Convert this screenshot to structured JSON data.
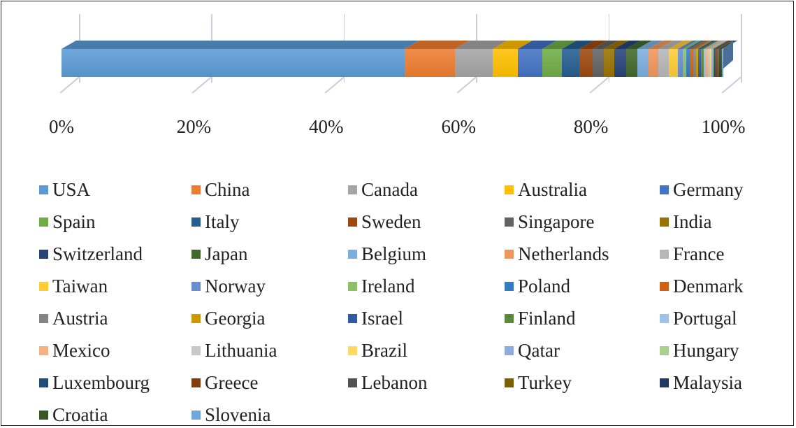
{
  "chart_data": {
    "type": "bar",
    "orientation": "horizontal",
    "stacked": "100%",
    "style": "3d",
    "title": "",
    "xlabel": "",
    "ylabel": "",
    "xlim": [
      0,
      100
    ],
    "x_ticks": [
      "0%",
      "20%",
      "40%",
      "60%",
      "80%",
      "100%"
    ],
    "grid": true,
    "legend_position": "bottom",
    "categories": [
      ""
    ],
    "series": [
      {
        "name": "USA",
        "color": "#5b9bd5",
        "values": [
          51.4
        ]
      },
      {
        "name": "China",
        "color": "#ed7d31",
        "values": [
          7.6
        ]
      },
      {
        "name": "Canada",
        "color": "#a5a5a5",
        "values": [
          5.6
        ]
      },
      {
        "name": "Australia",
        "color": "#ffc000",
        "values": [
          3.8
        ]
      },
      {
        "name": "Germany",
        "color": "#4472c4",
        "values": [
          3.7
        ]
      },
      {
        "name": "Spain",
        "color": "#70ad47",
        "values": [
          2.9
        ]
      },
      {
        "name": "Italy",
        "color": "#255e91",
        "values": [
          2.6
        ]
      },
      {
        "name": "Sweden",
        "color": "#9e480e",
        "values": [
          2.0
        ]
      },
      {
        "name": "Singapore",
        "color": "#636363",
        "values": [
          1.7
        ]
      },
      {
        "name": "India",
        "color": "#997300",
        "values": [
          1.6
        ]
      },
      {
        "name": "Switzerland",
        "color": "#264478",
        "values": [
          1.7
        ]
      },
      {
        "name": "Japan",
        "color": "#43682b",
        "values": [
          1.7
        ]
      },
      {
        "name": "Belgium",
        "color": "#7cafdd",
        "values": [
          1.7
        ]
      },
      {
        "name": "Netherlands",
        "color": "#f1975a",
        "values": [
          1.5
        ]
      },
      {
        "name": "France",
        "color": "#b7b7b7",
        "values": [
          1.5
        ]
      },
      {
        "name": "Taiwan",
        "color": "#ffcd33",
        "values": [
          1.4
        ]
      },
      {
        "name": "Norway",
        "color": "#698ed0",
        "values": [
          0.7
        ]
      },
      {
        "name": "Ireland",
        "color": "#8cc168",
        "values": [
          0.6
        ]
      },
      {
        "name": "Poland",
        "color": "#327dc2",
        "values": [
          0.5
        ]
      },
      {
        "name": "Denmark",
        "color": "#d26012",
        "values": [
          0.5
        ]
      },
      {
        "name": "Austria",
        "color": "#848484",
        "values": [
          0.4
        ]
      },
      {
        "name": "Georgia",
        "color": "#cc9a00",
        "values": [
          0.4
        ]
      },
      {
        "name": "Israel",
        "color": "#335aa1",
        "values": [
          0.4
        ]
      },
      {
        "name": "Finland",
        "color": "#5a8a39",
        "values": [
          0.4
        ]
      },
      {
        "name": "Portugal",
        "color": "#9dc3e6",
        "values": [
          0.3
        ]
      },
      {
        "name": "Mexico",
        "color": "#f4b183",
        "values": [
          0.3
        ]
      },
      {
        "name": "Lithuania",
        "color": "#c9c9c9",
        "values": [
          0.3
        ]
      },
      {
        "name": "Brazil",
        "color": "#ffd966",
        "values": [
          0.2
        ]
      },
      {
        "name": "Qatar",
        "color": "#8faadc",
        "values": [
          0.2
        ]
      },
      {
        "name": "Hungary",
        "color": "#a9d18e",
        "values": [
          0.2
        ]
      },
      {
        "name": "Luxembourg",
        "color": "#1f4e79",
        "values": [
          0.2
        ]
      },
      {
        "name": "Greece",
        "color": "#843c0c",
        "values": [
          0.2
        ]
      },
      {
        "name": "Lebanon",
        "color": "#525252",
        "values": [
          0.2
        ]
      },
      {
        "name": "Turkey",
        "color": "#7f6000",
        "values": [
          0.2
        ]
      },
      {
        "name": "Malaysia",
        "color": "#203864",
        "values": [
          0.2
        ]
      },
      {
        "name": "Croatia",
        "color": "#385723",
        "values": [
          0.2
        ]
      },
      {
        "name": "Slovenia",
        "color": "#6fa8dc",
        "values": [
          0.2
        ]
      }
    ]
  }
}
